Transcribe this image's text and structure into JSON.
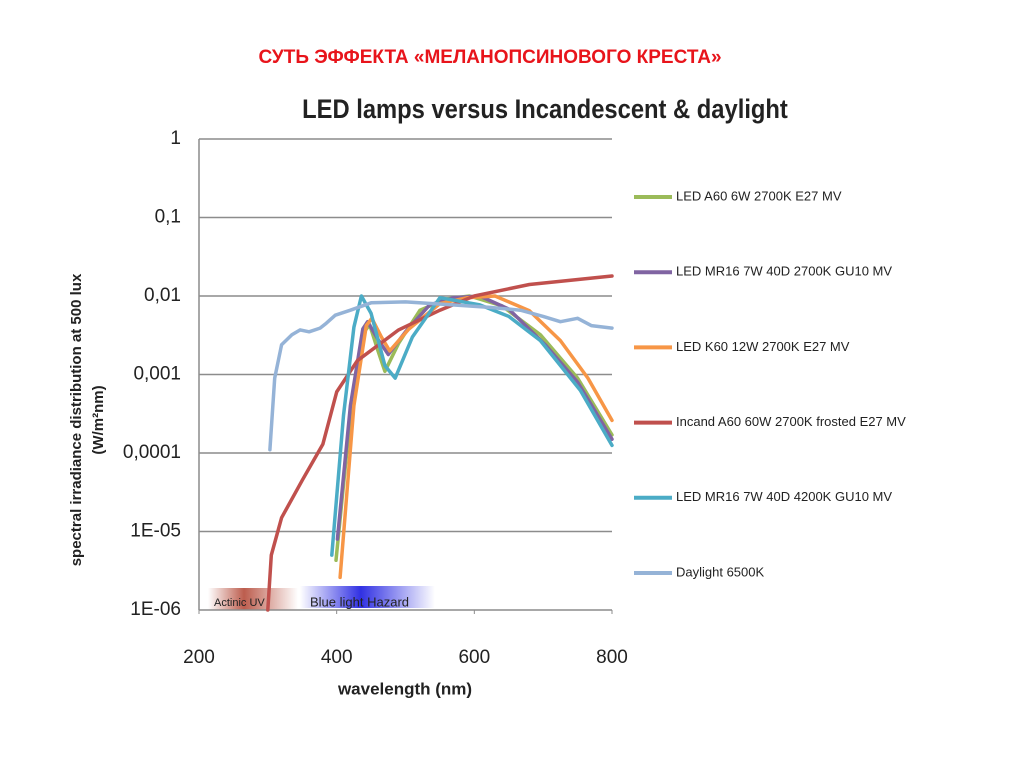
{
  "slide_title": "СУТЬ  ЭФФЕКТА «МЕЛАНОПСИНОВОГО КРЕСТА»",
  "chart_data": {
    "type": "line",
    "title": "LED lamps versus Incandescent & daylight",
    "xlabel": "wavelength (nm)",
    "ylabel": [
      "spectral irradiance distribution at 500 lux",
      "(W/m²nm)"
    ],
    "annotations": [
      "Actinic UV",
      "Blue light Hazard"
    ],
    "xlim": [
      200,
      800
    ],
    "xticks": [
      200,
      400,
      600,
      800
    ],
    "ylim": [
      1e-06,
      1
    ],
    "ylog": true,
    "grid": true,
    "legend": "right",
    "yticks": [
      {
        "value": 1e-06,
        "label": "1E-06"
      },
      {
        "value": 1e-05,
        "label": "1E-05"
      },
      {
        "value": 0.0001,
        "label": "0,0001"
      },
      {
        "value": 0.001,
        "label": "0,001"
      },
      {
        "value": 0.01,
        "label": "0,01"
      },
      {
        "value": 0.1,
        "label": "0,1"
      },
      1
    ],
    "series": [
      {
        "name": "LED A60 6W 2700K E27 MV",
        "color": "#9bbb59",
        "x": [
          399,
          420,
          440,
          448,
          460,
          470,
          490,
          521,
          560,
          593,
          640,
          696,
          750,
          800
        ],
        "values": [
          4.3e-06,
          0.0003,
          0.0035,
          0.0043,
          0.002,
          0.0011,
          0.0025,
          0.0066,
          0.0092,
          0.01,
          0.0075,
          0.0032,
          0.0009,
          0.00017
        ]
      },
      {
        "name": "LED MR16 7W 40D 2700K GU10 MV",
        "color": "#8064a2",
        "x": [
          401,
          420,
          438,
          445,
          460,
          475,
          500,
          535,
          570,
          608,
          650,
          703,
          750,
          800
        ],
        "values": [
          8e-06,
          0.0004,
          0.0038,
          0.0047,
          0.0028,
          0.0018,
          0.0035,
          0.0077,
          0.0095,
          0.01,
          0.0068,
          0.0024,
          0.0008,
          0.00015
        ]
      },
      {
        "name": "LED K60 12W 2700K E27 MV",
        "color": "#f79646",
        "x": [
          405,
          425,
          443,
          451,
          465,
          477,
          505,
          550,
          590,
          630,
          680,
          725,
          765,
          800
        ],
        "values": [
          2.6e-06,
          0.0004,
          0.0042,
          0.0052,
          0.003,
          0.002,
          0.0038,
          0.008,
          0.0095,
          0.01,
          0.0065,
          0.0027,
          0.0009,
          0.00026
        ]
      },
      {
        "name": "Incand A60 60W 2700K frosted E27 MV",
        "color": "#c0504d",
        "x": [
          300,
          305,
          320,
          350,
          380,
          400,
          430,
          490,
          550,
          600,
          680,
          800
        ],
        "values": [
          1e-06,
          5e-06,
          1.5e-05,
          4.5e-05,
          0.00013,
          0.0006,
          0.0015,
          0.0037,
          0.0066,
          0.01,
          0.014,
          0.018
        ]
      },
      {
        "name": "LED MR16 7W 40D 4200K GU10 MV",
        "color": "#4bacc6",
        "x": [
          393,
          410,
          425,
          436,
          450,
          470,
          485,
          510,
          550,
          608,
          650,
          696,
          754,
          800
        ],
        "values": [
          5e-06,
          0.0003,
          0.004,
          0.01,
          0.006,
          0.0013,
          0.0009,
          0.003,
          0.0095,
          0.0077,
          0.0055,
          0.0027,
          0.00063,
          0.000125
        ]
      },
      {
        "name": "Daylight 6500K",
        "color": "#95b3d7",
        "x": [
          303,
          310,
          320,
          335,
          347,
          360,
          376,
          385,
          398,
          420,
          450,
          500,
          560,
          620,
          667,
          700,
          725,
          750,
          770,
          800
        ],
        "values": [
          0.00011,
          0.0009,
          0.0024,
          0.0032,
          0.0037,
          0.0035,
          0.0039,
          0.0045,
          0.0057,
          0.0066,
          0.0082,
          0.0084,
          0.0078,
          0.0072,
          0.0066,
          0.0055,
          0.0047,
          0.0052,
          0.0042,
          0.0039
        ]
      }
    ]
  }
}
